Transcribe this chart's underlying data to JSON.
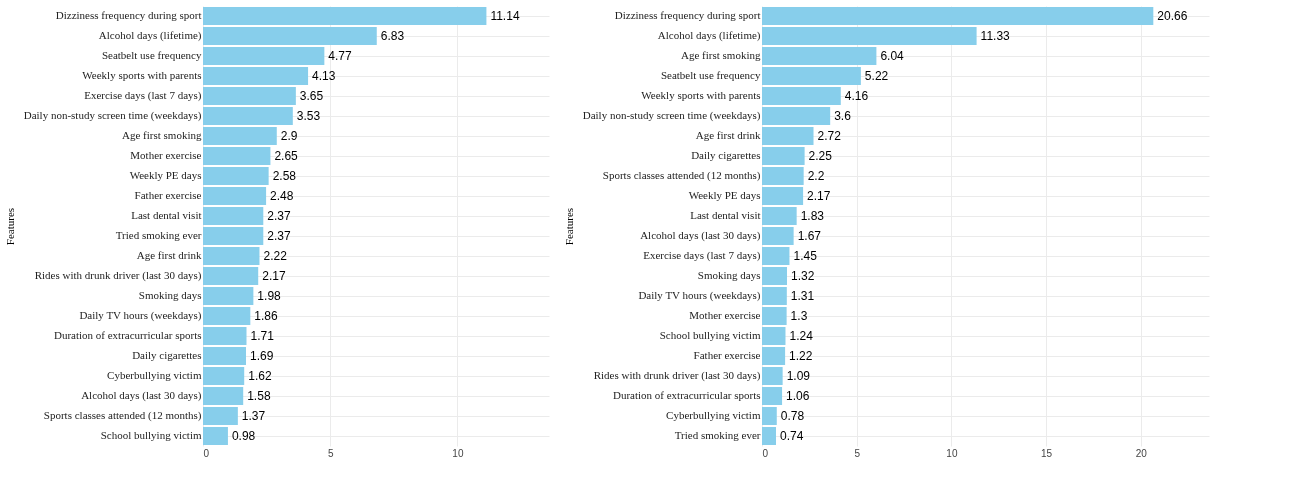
{
  "chart_data": [
    {
      "type": "bar",
      "orientation": "horizontal",
      "ylabel": "Features",
      "categories": [
        "Dizziness frequency during sport",
        "Alcohol days (lifetime)",
        "Seatbelt use frequency",
        "Weekly sports with parents",
        "Exercise days (last 7 days)",
        "Daily non-study screen time (weekdays)",
        "Age first smoking",
        "Mother exercise",
        "Weekly PE days",
        "Father exercise",
        "Last dental visit",
        "Tried smoking ever",
        "Age first drink",
        "Rides with drunk driver (last 30 days)",
        "Smoking days",
        "Daily TV hours (weekdays)",
        "Duration of extracurricular sports",
        "Daily cigarettes",
        "Cyberbullying victim",
        "Alcohol days (last 30 days)",
        "Sports classes attended (12 months)",
        "School bullying victim"
      ],
      "values": [
        11.14,
        6.83,
        4.77,
        4.13,
        3.65,
        3.53,
        2.9,
        2.65,
        2.58,
        2.48,
        2.37,
        2.37,
        2.22,
        2.17,
        1.98,
        1.86,
        1.71,
        1.69,
        1.62,
        1.58,
        1.37,
        0.98
      ],
      "color": "#87ceeb",
      "xlim": [
        0,
        13.6
      ],
      "xticks": [
        0,
        5,
        10
      ],
      "grid": true,
      "data_labels": true
    },
    {
      "type": "bar",
      "orientation": "horizontal",
      "ylabel": "Features",
      "categories": [
        "Dizziness frequency during sport",
        "Alcohol days (lifetime)",
        "Age first smoking",
        "Seatbelt use frequency",
        "Weekly sports with parents",
        "Daily non-study screen time (weekdays)",
        "Age first drink",
        "Daily cigarettes",
        "Sports classes attended (12 months)",
        "Weekly PE days",
        "Last dental visit",
        "Alcohol days (last 30 days)",
        "Exercise days (last 7 days)",
        "Smoking days",
        "Daily TV hours (weekdays)",
        "Mother exercise",
        "School bullying victim",
        "Father exercise",
        "Rides with drunk driver (last 30 days)",
        "Duration of extracurricular sports",
        "Cyberbullying victim",
        "Tried smoking ever"
      ],
      "values": [
        20.66,
        11.33,
        6.04,
        5.22,
        4.16,
        3.6,
        2.72,
        2.25,
        2.2,
        2.17,
        1.83,
        1.67,
        1.45,
        1.32,
        1.31,
        1.3,
        1.24,
        1.22,
        1.09,
        1.06,
        0.78,
        0.74
      ],
      "color": "#87ceeb",
      "xlim": [
        0,
        23.6
      ],
      "xticks": [
        0,
        5,
        10,
        15,
        20
      ],
      "grid": true,
      "data_labels": true
    }
  ]
}
